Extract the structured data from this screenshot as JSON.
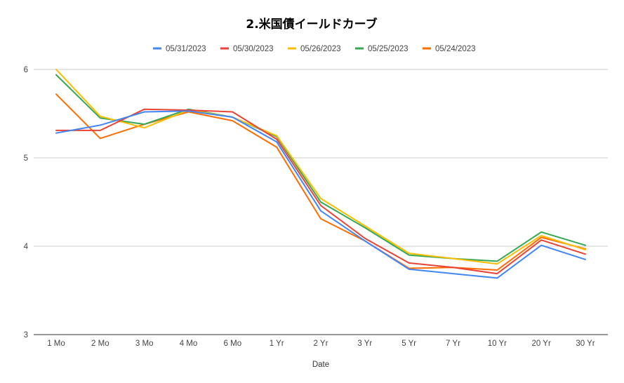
{
  "chart_data": {
    "type": "line",
    "title": "2.米国債イールドカーブ",
    "xlabel": "Date",
    "ylabel": "",
    "categories": [
      "1 Mo",
      "2 Mo",
      "3 Mo",
      "4 Mo",
      "6 Mo",
      "1 Yr",
      "2 Yr",
      "3 Yr",
      "5 Yr",
      "7 Yr",
      "10 Yr",
      "20 Yr",
      "30 Yr"
    ],
    "ylim": [
      3,
      6
    ],
    "yticks": [
      "3",
      "4",
      "5",
      "6"
    ],
    "grid": true,
    "legend_position": "top",
    "series": [
      {
        "name": "05/31/2023",
        "color": "#4285f4",
        "values": [
          5.28,
          5.37,
          5.52,
          5.53,
          5.46,
          5.18,
          4.4,
          4.06,
          3.74,
          3.69,
          3.64,
          4.01,
          3.85
        ]
      },
      {
        "name": "05/30/2023",
        "color": "#ea4335",
        "values": [
          5.31,
          5.31,
          5.55,
          5.54,
          5.52,
          5.21,
          4.46,
          4.09,
          3.81,
          3.76,
          3.69,
          4.07,
          3.91
        ]
      },
      {
        "name": "05/26/2023",
        "color": "#fbbc04",
        "values": [
          6.0,
          5.47,
          5.34,
          5.54,
          5.46,
          5.25,
          4.54,
          4.23,
          3.92,
          3.86,
          3.8,
          4.12,
          3.96
        ]
      },
      {
        "name": "05/25/2023",
        "color": "#34a853",
        "values": [
          5.94,
          5.45,
          5.38,
          5.55,
          5.46,
          5.24,
          4.5,
          4.21,
          3.9,
          3.86,
          3.83,
          4.16,
          4.01
        ]
      },
      {
        "name": "05/24/2023",
        "color": "#ff6d01",
        "values": [
          5.72,
          5.22,
          5.38,
          5.52,
          5.42,
          5.12,
          4.31,
          4.06,
          3.75,
          3.76,
          3.73,
          4.1,
          3.97
        ]
      }
    ]
  }
}
